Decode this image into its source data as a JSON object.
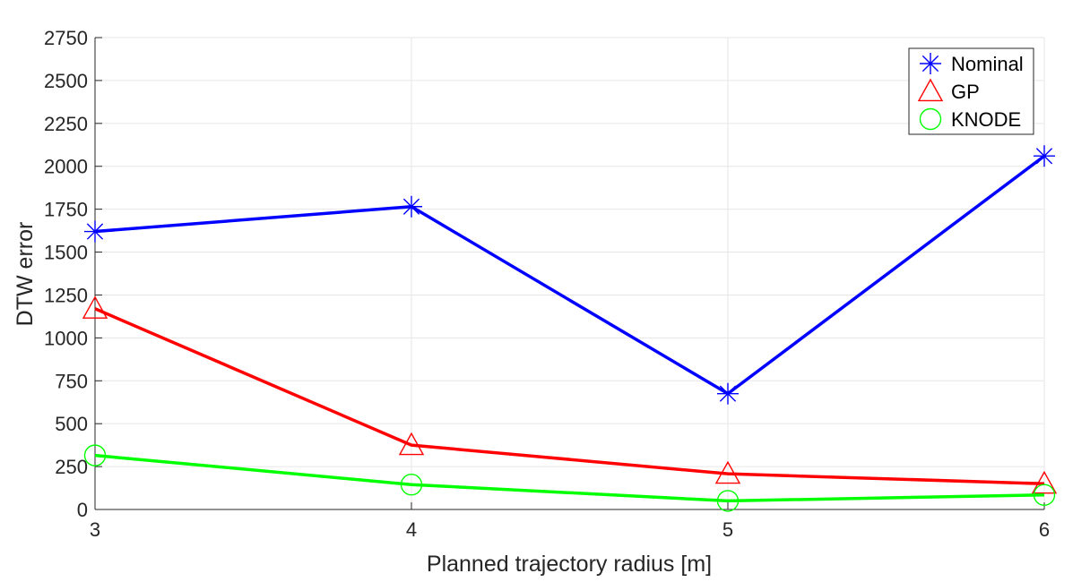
{
  "chart_data": {
    "type": "line",
    "title": "",
    "xlabel": "Planned trajectory radius [m]",
    "ylabel": "DTW error",
    "x": [
      3,
      4,
      5,
      6
    ],
    "xlim": [
      3,
      6
    ],
    "ylim": [
      0,
      2750
    ],
    "xticks": [
      "3",
      "4",
      "5",
      "6"
    ],
    "yticks": [
      "0",
      "250",
      "500",
      "750",
      "1000",
      "1250",
      "1500",
      "1750",
      "2000",
      "2250",
      "2500",
      "2750"
    ],
    "grid": true,
    "legend_position": "top-right",
    "series": [
      {
        "name": "Nominal",
        "values": [
          1620,
          1765,
          675,
          2060
        ],
        "color": "#0000ff",
        "marker": "asterisk"
      },
      {
        "name": "GP",
        "values": [
          1170,
          375,
          208,
          150
        ],
        "color": "#ff0000",
        "marker": "triangle"
      },
      {
        "name": "KNODE",
        "values": [
          315,
          145,
          50,
          85
        ],
        "color": "#00ff00",
        "marker": "circle"
      }
    ]
  }
}
